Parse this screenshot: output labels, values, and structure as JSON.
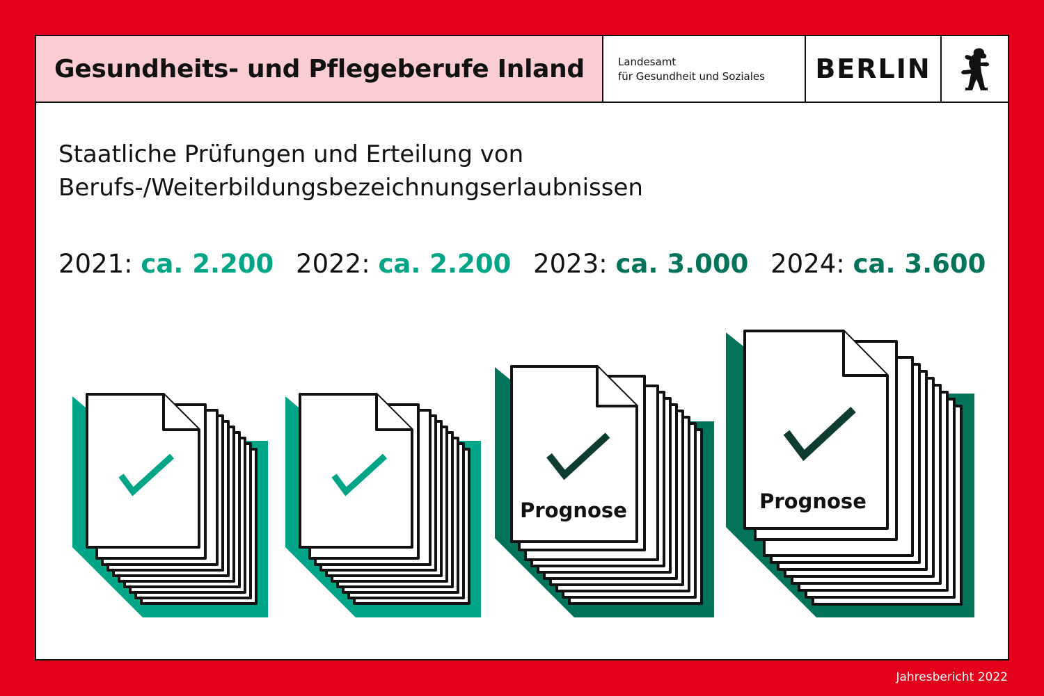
{
  "header": {
    "title": "Gesundheits- und Pflegeberufe Inland",
    "agency_line1": "Landesamt",
    "agency_line2": "für Gesundheit und Soziales",
    "city": "BERLIN"
  },
  "subtitle_line1": "Staatliche Prüfungen und Erteilung von",
  "subtitle_line2": "Berufs-/Weiterbildungsbezeichnungserlaubnissen",
  "years": [
    {
      "label": "2021:",
      "value": "ca. 2.200",
      "color": "#00a587"
    },
    {
      "label": "2022:",
      "value": "ca. 2.200",
      "color": "#00a587"
    },
    {
      "label": "2023:",
      "value": "ca. 3.000",
      "color": "#00735a"
    },
    {
      "label": "2024:",
      "value": "ca. 3.600",
      "color": "#00735a"
    }
  ],
  "stacks": [
    {
      "year": "2021",
      "icon": "document-stack-check-icon",
      "prognose": ""
    },
    {
      "year": "2022",
      "icon": "document-stack-check-icon",
      "prognose": ""
    },
    {
      "year": "2023",
      "icon": "document-stack-check-icon",
      "prognose": "Prognose"
    },
    {
      "year": "2024",
      "icon": "document-stack-check-icon",
      "prognose": "Prognose"
    }
  ],
  "colors": {
    "background": "#e3001b",
    "header_fill": "#fbcdd3",
    "green_light": "#00a587",
    "green_dark": "#00735a",
    "check_dark": "#0f3c31"
  },
  "logo_icon": "berlin-bear-icon",
  "footer": "Jahresbericht 2022"
}
